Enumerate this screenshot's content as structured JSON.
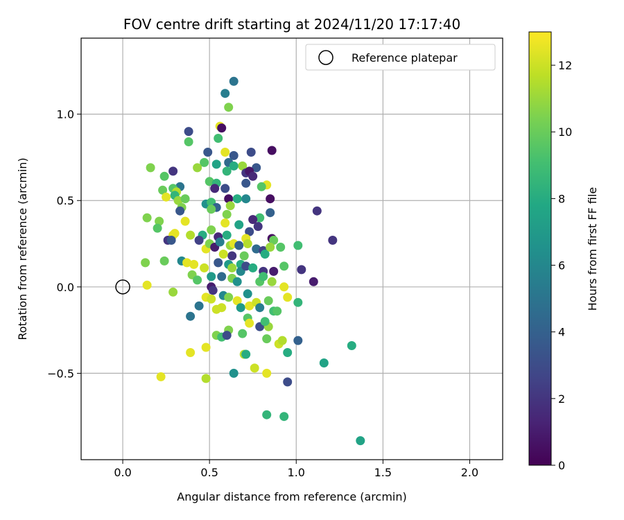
{
  "chart_data": {
    "type": "scatter",
    "title": "FOV centre drift starting at 2024/11/20 17:17:40",
    "xlabel": "Angular distance from reference (arcmin)",
    "ylabel": "Rotation from reference (arcmin)",
    "xlim": [
      -0.24,
      2.19
    ],
    "ylim": [
      -1.0,
      1.44
    ],
    "xticks": [
      "0.0",
      "0.5",
      "1.0",
      "1.5",
      "2.0"
    ],
    "yticks": [
      "−0.5",
      "0.0",
      "0.5",
      "1.0"
    ],
    "xtick_values": [
      0,
      0.5,
      1.0,
      1.5,
      2.0
    ],
    "ytick_values": [
      -0.5,
      0,
      0.5,
      1.0
    ],
    "grid": true,
    "legend": {
      "position": "top-right",
      "entries": [
        "Reference platepar"
      ]
    },
    "reference": {
      "x": 0.0,
      "y": 0.0
    },
    "colorbar": {
      "label": "Hours from first FF file",
      "ticks": [
        "0",
        "2",
        "4",
        "6",
        "8",
        "10",
        "12"
      ],
      "range": [
        0,
        13.0
      ],
      "colormap": "viridis"
    },
    "points": [
      [
        0.64,
        1.19,
        5.0
      ],
      [
        0.59,
        1.12,
        5.5
      ],
      [
        0.61,
        1.04,
        10.5
      ],
      [
        0.56,
        0.93,
        12.5
      ],
      [
        0.57,
        0.92,
        0.5
      ],
      [
        0.38,
        0.9,
        3.0
      ],
      [
        0.38,
        0.84,
        9.5
      ],
      [
        0.55,
        0.86,
        9.0
      ],
      [
        0.49,
        0.78,
        3.5
      ],
      [
        0.59,
        0.78,
        12.5
      ],
      [
        0.74,
        0.78,
        3.0
      ],
      [
        0.86,
        0.79,
        0.5
      ],
      [
        0.64,
        0.76,
        3.5
      ],
      [
        0.61,
        0.72,
        4.5
      ],
      [
        0.54,
        0.71,
        7.5
      ],
      [
        0.47,
        0.72,
        9.5
      ],
      [
        0.16,
        0.69,
        10.5
      ],
      [
        0.43,
        0.69,
        11.0
      ],
      [
        0.29,
        0.67,
        2.0
      ],
      [
        0.69,
        0.7,
        11.0
      ],
      [
        0.77,
        0.69,
        3.5
      ],
      [
        0.64,
        0.7,
        8.0
      ],
      [
        0.6,
        0.67,
        8.5
      ],
      [
        0.71,
        0.66,
        2.0
      ],
      [
        0.73,
        0.67,
        0.8
      ],
      [
        0.75,
        0.64,
        1.5
      ],
      [
        0.24,
        0.64,
        9.5
      ],
      [
        0.33,
        0.58,
        5.0
      ],
      [
        0.29,
        0.57,
        9.5
      ],
      [
        0.31,
        0.55,
        11.5
      ],
      [
        0.5,
        0.61,
        9.5
      ],
      [
        0.54,
        0.6,
        8.5
      ],
      [
        0.71,
        0.6,
        3.5
      ],
      [
        0.83,
        0.59,
        12.5
      ],
      [
        0.53,
        0.57,
        1.5
      ],
      [
        0.59,
        0.57,
        3.0
      ],
      [
        0.8,
        0.58,
        9.5
      ],
      [
        0.23,
        0.56,
        10.0
      ],
      [
        0.3,
        0.53,
        8.5
      ],
      [
        0.32,
        0.5,
        11.0
      ],
      [
        0.36,
        0.51,
        10.0
      ],
      [
        0.25,
        0.52,
        12.5
      ],
      [
        0.48,
        0.48,
        6.5
      ],
      [
        0.51,
        0.49,
        9.0
      ],
      [
        0.54,
        0.46,
        4.0
      ],
      [
        0.61,
        0.51,
        0.5
      ],
      [
        0.66,
        0.51,
        8.0
      ],
      [
        0.71,
        0.51,
        6.0
      ],
      [
        0.85,
        0.51,
        0.5
      ],
      [
        0.34,
        0.46,
        10.5
      ],
      [
        0.33,
        0.44,
        3.5
      ],
      [
        0.51,
        0.45,
        10.0
      ],
      [
        0.14,
        0.4,
        10.5
      ],
      [
        0.21,
        0.38,
        10.5
      ],
      [
        0.36,
        0.38,
        12.5
      ],
      [
        0.6,
        0.42,
        10.5
      ],
      [
        0.62,
        0.47,
        11.0
      ],
      [
        0.85,
        0.43,
        4.0
      ],
      [
        0.79,
        0.4,
        9.0
      ],
      [
        0.75,
        0.39,
        1.5
      ],
      [
        0.2,
        0.34,
        9.5
      ],
      [
        0.29,
        0.3,
        12.5
      ],
      [
        0.3,
        0.31,
        12.5
      ],
      [
        0.39,
        0.3,
        11.5
      ],
      [
        0.46,
        0.3,
        8.0
      ],
      [
        0.51,
        0.33,
        10.5
      ],
      [
        0.55,
        0.29,
        1.5
      ],
      [
        0.59,
        0.37,
        12.5
      ],
      [
        0.6,
        0.3,
        8.0
      ],
      [
        0.67,
        0.36,
        7.5
      ],
      [
        0.73,
        0.32,
        3.0
      ],
      [
        0.78,
        0.35,
        2.0
      ],
      [
        0.71,
        0.28,
        12.5
      ],
      [
        0.86,
        0.28,
        0.5
      ],
      [
        0.87,
        0.27,
        10.0
      ],
      [
        0.91,
        0.23,
        9.5
      ],
      [
        1.01,
        0.24,
        9.0
      ],
      [
        1.12,
        0.44,
        2.0
      ],
      [
        1.21,
        0.27,
        2.0
      ],
      [
        0.26,
        0.27,
        2.0
      ],
      [
        0.28,
        0.27,
        3.5
      ],
      [
        0.44,
        0.27,
        2.5
      ],
      [
        0.48,
        0.22,
        12.5
      ],
      [
        0.5,
        0.25,
        10.5
      ],
      [
        0.53,
        0.23,
        1.0
      ],
      [
        0.56,
        0.26,
        5.5
      ],
      [
        0.62,
        0.24,
        11.0
      ],
      [
        0.64,
        0.25,
        12.5
      ],
      [
        0.67,
        0.24,
        4.0
      ],
      [
        0.72,
        0.25,
        11.5
      ],
      [
        0.77,
        0.22,
        4.5
      ],
      [
        0.81,
        0.21,
        2.5
      ],
      [
        0.82,
        0.19,
        8.0
      ],
      [
        0.85,
        0.23,
        11.0
      ],
      [
        0.63,
        0.18,
        2.0
      ],
      [
        0.58,
        0.19,
        12.0
      ],
      [
        0.7,
        0.18,
        10.0
      ],
      [
        0.24,
        0.15,
        10.0
      ],
      [
        0.34,
        0.15,
        6.0
      ],
      [
        0.37,
        0.14,
        12.5
      ],
      [
        0.41,
        0.13,
        12.5
      ],
      [
        0.13,
        0.14,
        10.5
      ],
      [
        0.55,
        0.14,
        3.5
      ],
      [
        0.61,
        0.13,
        7.0
      ],
      [
        0.63,
        0.11,
        11.0
      ],
      [
        0.68,
        0.13,
        8.0
      ],
      [
        0.68,
        0.09,
        6.0
      ],
      [
        0.71,
        0.12,
        3.0
      ],
      [
        0.75,
        0.11,
        8.0
      ],
      [
        0.81,
        0.09,
        2.0
      ],
      [
        0.87,
        0.09,
        1.0
      ],
      [
        0.93,
        0.12,
        9.5
      ],
      [
        1.03,
        0.1,
        2.0
      ],
      [
        0.47,
        0.11,
        12.0
      ],
      [
        0.4,
        0.07,
        10.5
      ],
      [
        0.43,
        0.04,
        9.5
      ],
      [
        0.51,
        0.06,
        7.0
      ],
      [
        0.57,
        0.06,
        4.5
      ],
      [
        0.63,
        0.05,
        10.5
      ],
      [
        0.66,
        0.03,
        6.5
      ],
      [
        0.79,
        0.03,
        9.5
      ],
      [
        0.81,
        0.06,
        9.0
      ],
      [
        0.86,
        0.03,
        11.0
      ],
      [
        1.1,
        0.03,
        1.0
      ],
      [
        0.14,
        0.01,
        12.5
      ],
      [
        0.51,
        0.0,
        1.0
      ],
      [
        0.52,
        -0.02,
        2.0
      ],
      [
        0.93,
        0.0,
        12.5
      ],
      [
        0.29,
        -0.03,
        11.0
      ],
      [
        0.44,
        -0.11,
        5.0
      ],
      [
        0.48,
        -0.06,
        12.5
      ],
      [
        0.51,
        -0.07,
        12.0
      ],
      [
        0.54,
        -0.13,
        12.0
      ],
      [
        0.58,
        -0.05,
        6.0
      ],
      [
        0.61,
        -0.06,
        10.5
      ],
      [
        0.66,
        -0.08,
        12.5
      ],
      [
        0.68,
        -0.12,
        7.0
      ],
      [
        0.72,
        -0.04,
        6.5
      ],
      [
        0.73,
        -0.11,
        12.5
      ],
      [
        0.77,
        -0.09,
        12.0
      ],
      [
        0.79,
        -0.12,
        5.5
      ],
      [
        0.84,
        -0.08,
        10.0
      ],
      [
        0.87,
        -0.14,
        9.0
      ],
      [
        0.89,
        -0.14,
        9.5
      ],
      [
        0.95,
        -0.06,
        12.5
      ],
      [
        1.01,
        -0.09,
        8.5
      ],
      [
        0.39,
        -0.17,
        5.0
      ],
      [
        0.57,
        -0.12,
        12.0
      ],
      [
        0.72,
        -0.18,
        9.5
      ],
      [
        0.73,
        -0.21,
        12.5
      ],
      [
        0.79,
        -0.23,
        3.0
      ],
      [
        0.84,
        -0.23,
        11.0
      ],
      [
        0.82,
        -0.2,
        9.0
      ],
      [
        0.61,
        -0.25,
        10.5
      ],
      [
        0.54,
        -0.28,
        10.5
      ],
      [
        0.57,
        -0.29,
        9.0
      ],
      [
        0.6,
        -0.28,
        3.0
      ],
      [
        0.69,
        -0.27,
        9.5
      ],
      [
        0.83,
        -0.3,
        10.0
      ],
      [
        0.9,
        -0.33,
        12.0
      ],
      [
        0.92,
        -0.31,
        11.5
      ],
      [
        1.01,
        -0.31,
        4.0
      ],
      [
        0.39,
        -0.38,
        12.5
      ],
      [
        0.48,
        -0.35,
        12.5
      ],
      [
        0.7,
        -0.39,
        11.5
      ],
      [
        0.71,
        -0.39,
        8.0
      ],
      [
        0.76,
        -0.47,
        12.0
      ],
      [
        0.95,
        -0.38,
        8.0
      ],
      [
        1.16,
        -0.44,
        7.5
      ],
      [
        1.32,
        -0.34,
        8.0
      ],
      [
        0.22,
        -0.52,
        12.5
      ],
      [
        0.48,
        -0.53,
        11.5
      ],
      [
        0.64,
        -0.5,
        6.5
      ],
      [
        0.83,
        -0.5,
        12.5
      ],
      [
        0.95,
        -0.55,
        3.0
      ],
      [
        0.83,
        -0.74,
        8.5
      ],
      [
        0.93,
        -0.75,
        8.5
      ],
      [
        1.37,
        -0.89,
        7.5
      ]
    ]
  }
}
